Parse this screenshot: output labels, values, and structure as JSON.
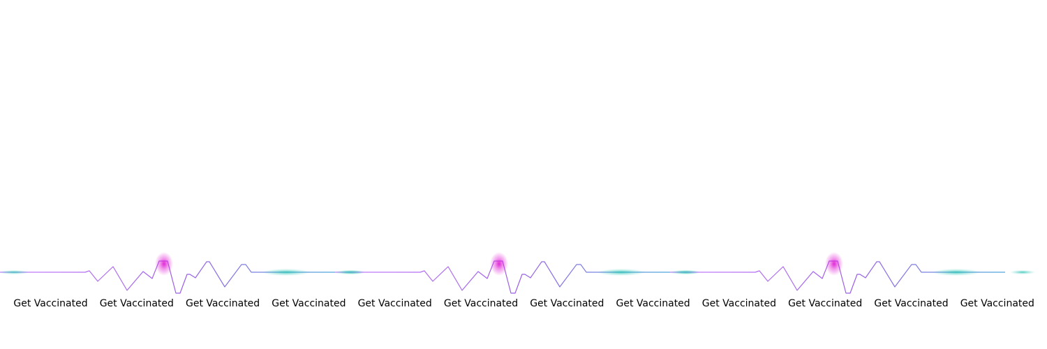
{
  "banner": {
    "labels": [
      "Get Vaccinated",
      "Get Vaccinated",
      "Get Vaccinated",
      "Get Vaccinated",
      "Get Vaccinated",
      "Get Vaccinated",
      "Get Vaccinated",
      "Get Vaccinated",
      "Get Vaccinated",
      "Get Vaccinated",
      "Get Vaccinated",
      "Get Vaccinated"
    ],
    "colors": {
      "line_start": "#c77dff",
      "line_mid": "#9b5de5",
      "line_end": "#4ea8de",
      "glow_pink": "#e01cd5",
      "glow_teal": "#2ec4b6",
      "text": "#000000"
    }
  }
}
